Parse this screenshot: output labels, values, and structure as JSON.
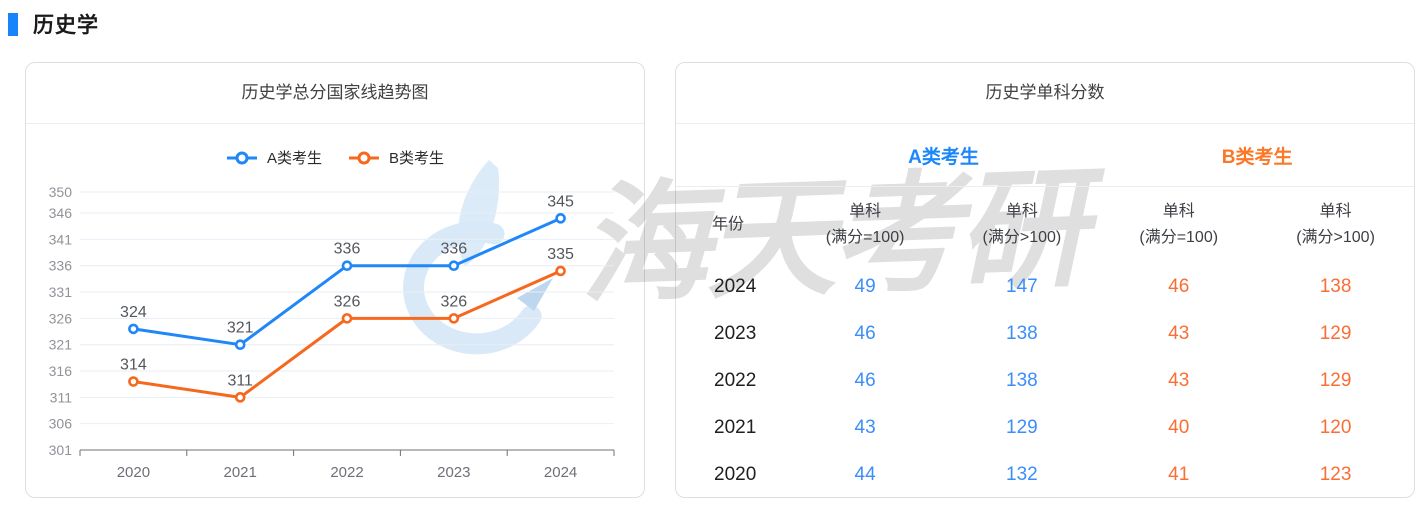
{
  "page": {
    "title": "历史学"
  },
  "colors": {
    "accent_blue": "#1685fb",
    "line_blue": "#1f87f8",
    "line_orange": "#f5681d",
    "header_blue": "#1a87fb",
    "header_orange": "#fc7726",
    "value_blue": "#3b8ef9",
    "value_orange": "#fa6e35",
    "gridline": "#e9eef6",
    "axis_line": "#6e7079"
  },
  "watermark": {
    "text": "海天考研",
    "logo": "haitian-kaoyan-logo"
  },
  "chart_card": {
    "title": "历史学总分国家线趋势图"
  },
  "chart_data": {
    "type": "line",
    "title": "历史学总分国家线趋势图",
    "categories": [
      "2020",
      "2021",
      "2022",
      "2023",
      "2024"
    ],
    "series": [
      {
        "name": "A类考生",
        "color": "#1f87f8",
        "values": [
          324,
          321,
          336,
          336,
          345
        ]
      },
      {
        "name": "B类考生",
        "color": "#f5681d",
        "values": [
          314,
          311,
          326,
          326,
          335
        ]
      }
    ],
    "ylim": [
      301,
      350
    ],
    "yticks": [
      301,
      306,
      311,
      316,
      321,
      326,
      331,
      336,
      341,
      346,
      350
    ],
    "grid": true,
    "legend_position": "top",
    "data_labels": true
  },
  "table_card": {
    "title": "历史学单科分数",
    "group_headers": [
      {
        "label": "A类考生"
      },
      {
        "label": "B类考生"
      }
    ],
    "columns": [
      {
        "label": "年份",
        "sub": ""
      },
      {
        "label": "单科",
        "sub": "(满分=100)"
      },
      {
        "label": "单科",
        "sub": "(满分>100)"
      },
      {
        "label": "单科",
        "sub": "(满分=100)"
      },
      {
        "label": "单科",
        "sub": "(满分>100)"
      }
    ],
    "rows": [
      {
        "year": "2024",
        "values": [
          "49",
          "147",
          "46",
          "138"
        ]
      },
      {
        "year": "2023",
        "values": [
          "46",
          "138",
          "43",
          "129"
        ]
      },
      {
        "year": "2022",
        "values": [
          "46",
          "138",
          "43",
          "129"
        ]
      },
      {
        "year": "2021",
        "values": [
          "43",
          "129",
          "40",
          "120"
        ]
      },
      {
        "year": "2020",
        "values": [
          "44",
          "132",
          "41",
          "123"
        ]
      }
    ]
  }
}
